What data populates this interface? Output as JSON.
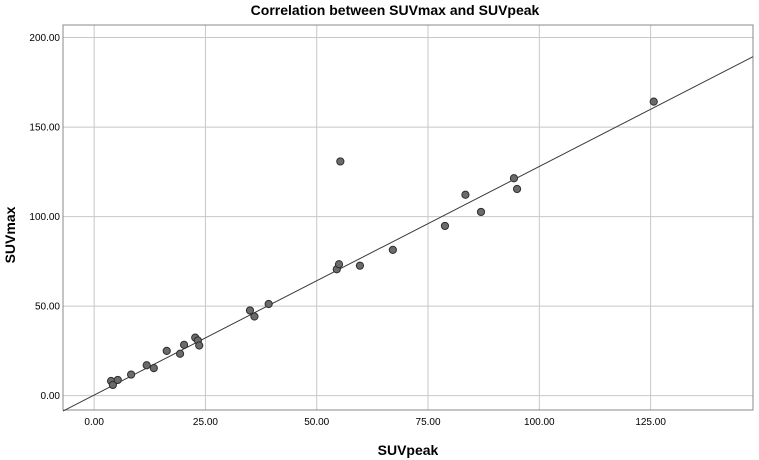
{
  "chart_data": {
    "type": "scatter",
    "title": "Correlation between SUVmax and SUVpeak",
    "xlabel": "SUVpeak",
    "ylabel": "SUVmax",
    "xlim": [
      -7,
      148
    ],
    "ylim": [
      -8,
      207
    ],
    "x_ticks": [
      "0.00",
      "25.00",
      "50.00",
      "75.00",
      "100.00",
      "125.00"
    ],
    "y_ticks": [
      "0.00",
      "50.00",
      "100.00",
      "150.00",
      "200.00"
    ],
    "grid": true,
    "points": [
      {
        "x": 3.8,
        "y": 8.2
      },
      {
        "x": 4.2,
        "y": 6.0
      },
      {
        "x": 5.3,
        "y": 8.8
      },
      {
        "x": 8.3,
        "y": 11.8
      },
      {
        "x": 11.8,
        "y": 17.0
      },
      {
        "x": 13.4,
        "y": 15.4
      },
      {
        "x": 16.3,
        "y": 25.0
      },
      {
        "x": 19.3,
        "y": 23.4
      },
      {
        "x": 20.2,
        "y": 28.4
      },
      {
        "x": 22.7,
        "y": 32.4
      },
      {
        "x": 23.3,
        "y": 30.8
      },
      {
        "x": 23.6,
        "y": 28.0
      },
      {
        "x": 35.0,
        "y": 47.6
      },
      {
        "x": 36.0,
        "y": 44.2
      },
      {
        "x": 39.2,
        "y": 51.2
      },
      {
        "x": 54.5,
        "y": 70.6
      },
      {
        "x": 55.0,
        "y": 73.4
      },
      {
        "x": 55.3,
        "y": 130.8
      },
      {
        "x": 59.7,
        "y": 72.6
      },
      {
        "x": 67.1,
        "y": 81.4
      },
      {
        "x": 78.8,
        "y": 94.8
      },
      {
        "x": 83.4,
        "y": 112.2
      },
      {
        "x": 86.9,
        "y": 102.6
      },
      {
        "x": 94.3,
        "y": 121.4
      },
      {
        "x": 95.0,
        "y": 115.4
      },
      {
        "x": 125.7,
        "y": 164.2
      }
    ],
    "fit_line": {
      "x": [
        -7,
        148
      ],
      "y": [
        -8.6,
        189.3
      ]
    },
    "colors": {
      "point_fill": "#6b6b6b",
      "point_stroke": "#2e2e2e",
      "line": "#3a3a3a",
      "grid": "#c8c8c8",
      "frame": "#888888"
    }
  }
}
